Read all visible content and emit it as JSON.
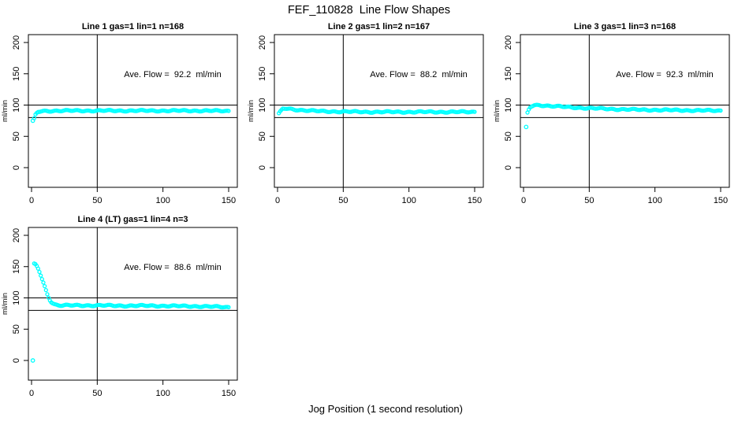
{
  "figure": {
    "title": "FEF_110828  Line Flow Shapes",
    "xlabel": "Jog Position (1 second resolution)",
    "background_color": "#ffffff",
    "axis_color": "#000000",
    "point_color": "#00ffff",
    "layout": {
      "rows": 2,
      "cols": 3,
      "filled_panels": 4
    }
  },
  "chart_data": [
    {
      "type": "scatter",
      "title": "Line 1 gas=1 lin=1 n=168",
      "line": 1,
      "gas": 1,
      "lin": 1,
      "n": 168,
      "annotation": "Ave. Flow =  92.2  ml/min",
      "ave_flow_ml_min": 92.2,
      "ylabel": "ml/min",
      "xlim": [
        0,
        150
      ],
      "ylim": [
        0,
        200
      ],
      "xticks": [
        0,
        50,
        100,
        150
      ],
      "yticks": [
        0,
        50,
        100,
        150,
        200
      ],
      "ref_hlines": [
        80,
        100
      ],
      "ref_vlines": [
        50
      ],
      "marker": "circle-open",
      "marker_color": "#00ffff",
      "outlier_points": [
        [
          1,
          75
        ]
      ],
      "series_keypoints": [
        [
          2,
          79
        ],
        [
          2.5,
          82
        ],
        [
          3,
          85
        ],
        [
          4,
          87.5
        ],
        [
          5,
          89
        ],
        [
          7,
          90
        ],
        [
          10,
          90.5
        ],
        [
          20,
          91
        ],
        [
          40,
          91
        ],
        [
          70,
          91
        ],
        [
          100,
          91
        ],
        [
          130,
          91
        ],
        [
          150,
          90.5
        ]
      ]
    },
    {
      "type": "scatter",
      "title": "Line 2 gas=1 lin=2 n=167",
      "line": 2,
      "gas": 1,
      "lin": 2,
      "n": 167,
      "annotation": "Ave. Flow =  88.2  ml/min",
      "ave_flow_ml_min": 88.2,
      "ylabel": "ml/min",
      "xlim": [
        0,
        150
      ],
      "ylim": [
        0,
        200
      ],
      "xticks": [
        0,
        50,
        100,
        150
      ],
      "yticks": [
        0,
        50,
        100,
        150,
        200
      ],
      "ref_hlines": [
        80,
        100
      ],
      "ref_vlines": [
        50
      ],
      "marker": "circle-open",
      "marker_color": "#00ffff",
      "outlier_points": [],
      "series_keypoints": [
        [
          1,
          87
        ],
        [
          2,
          90
        ],
        [
          3,
          92.5
        ],
        [
          4,
          94
        ],
        [
          6,
          94.5
        ],
        [
          9,
          94
        ],
        [
          13,
          93
        ],
        [
          18,
          92
        ],
        [
          25,
          91
        ],
        [
          35,
          90
        ],
        [
          50,
          89.5
        ],
        [
          70,
          89
        ],
        [
          100,
          89
        ],
        [
          130,
          89
        ],
        [
          150,
          89
        ]
      ]
    },
    {
      "type": "scatter",
      "title": "Line 3 gas=1 lin=3 n=168",
      "line": 3,
      "gas": 1,
      "lin": 3,
      "n": 168,
      "annotation": "Ave. Flow =  92.3  ml/min",
      "ave_flow_ml_min": 92.3,
      "ylabel": "ml/min",
      "xlim": [
        0,
        150
      ],
      "ylim": [
        0,
        200
      ],
      "xticks": [
        0,
        50,
        100,
        150
      ],
      "yticks": [
        0,
        50,
        100,
        150,
        200
      ],
      "ref_hlines": [
        80,
        100
      ],
      "ref_vlines": [
        50
      ],
      "marker": "circle-open",
      "marker_color": "#00ffff",
      "outlier_points": [
        [
          2,
          65
        ]
      ],
      "series_keypoints": [
        [
          3,
          88
        ],
        [
          4,
          93
        ],
        [
          5,
          96
        ],
        [
          6,
          98
        ],
        [
          8,
          99.5
        ],
        [
          12,
          100
        ],
        [
          18,
          99
        ],
        [
          25,
          98
        ],
        [
          35,
          96.5
        ],
        [
          50,
          95
        ],
        [
          70,
          93.5
        ],
        [
          90,
          92.5
        ],
        [
          110,
          92
        ],
        [
          130,
          91.5
        ],
        [
          150,
          91
        ]
      ]
    },
    {
      "type": "scatter",
      "title": "Line 4 (LT) gas=1 lin=4 n=3",
      "line": 4,
      "line_note": "LT",
      "gas": 1,
      "lin": 4,
      "n": 3,
      "annotation": "Ave. Flow =  88.6  ml/min",
      "ave_flow_ml_min": 88.6,
      "ylabel": "ml/min",
      "xlim": [
        0,
        150
      ],
      "ylim": [
        0,
        200
      ],
      "xticks": [
        0,
        50,
        100,
        150
      ],
      "yticks": [
        0,
        50,
        100,
        150,
        200
      ],
      "ref_hlines": [
        80,
        100
      ],
      "ref_vlines": [
        50
      ],
      "marker": "circle-open",
      "marker_color": "#00ffff",
      "outlier_points": [
        [
          1,
          0
        ]
      ],
      "series_keypoints": [
        [
          2,
          155
        ],
        [
          3,
          154
        ],
        [
          4,
          151
        ],
        [
          5,
          147
        ],
        [
          6,
          142
        ],
        [
          7,
          136
        ],
        [
          8,
          130
        ],
        [
          9,
          124
        ],
        [
          10,
          118
        ],
        [
          11,
          112
        ],
        [
          12,
          106
        ],
        [
          13,
          101
        ],
        [
          14,
          97
        ],
        [
          15,
          94
        ],
        [
          16,
          92
        ],
        [
          17,
          90.5
        ],
        [
          18,
          89.5
        ],
        [
          20,
          88.5
        ],
        [
          23,
          88
        ],
        [
          28,
          88
        ],
        [
          35,
          88
        ],
        [
          50,
          88
        ],
        [
          70,
          87.5
        ],
        [
          90,
          87.5
        ],
        [
          110,
          87
        ],
        [
          130,
          86.5
        ],
        [
          145,
          85.5
        ],
        [
          150,
          85
        ]
      ]
    }
  ]
}
